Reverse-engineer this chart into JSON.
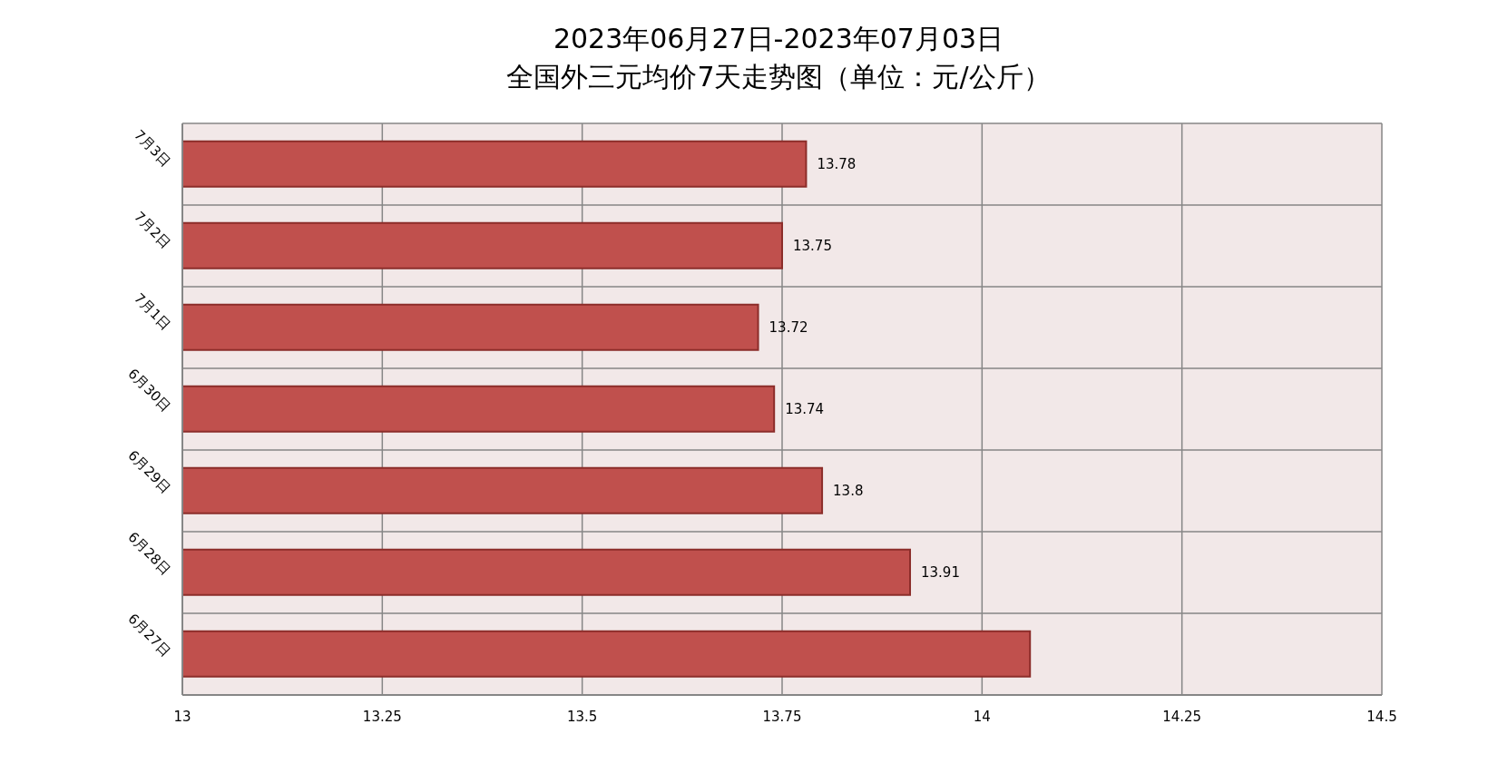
{
  "chart_data": {
    "type": "bar",
    "orientation": "horizontal",
    "title": "2023年06月27日-2023年07月03日",
    "subtitle": "全国外三元均价7天走势图（单位：元/公斤）",
    "categories": [
      "7月3日",
      "7月2日",
      "7月1日",
      "6月30日",
      "6月29日",
      "6月28日",
      "6月27日"
    ],
    "values": [
      13.78,
      13.75,
      13.72,
      13.74,
      13.8,
      13.91,
      14.06
    ],
    "value_labels": [
      "13.78",
      "13.75",
      "13.72",
      "13.74",
      "13.8",
      "13.91",
      null
    ],
    "color": "#c0504d",
    "xlim": [
      13,
      14.5
    ],
    "xticks": [
      13,
      13.25,
      13.5,
      13.75,
      14,
      14.25,
      14.5
    ],
    "grid": true
  }
}
